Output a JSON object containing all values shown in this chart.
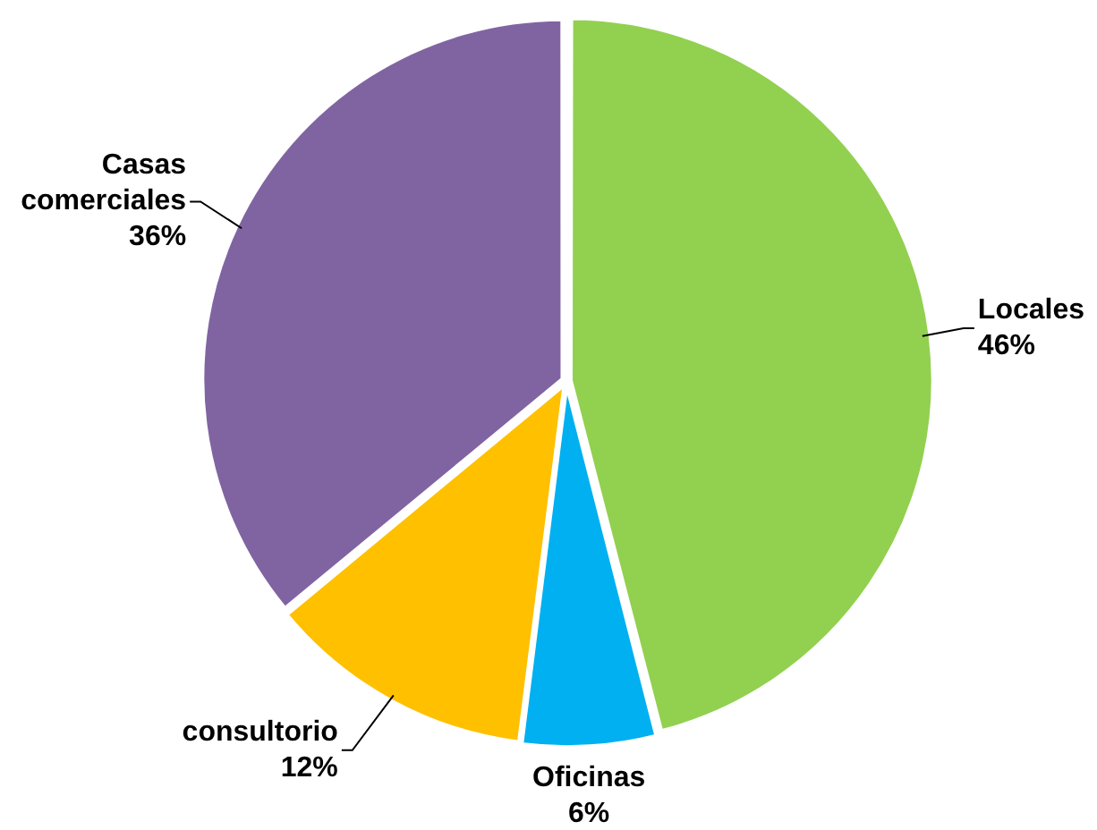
{
  "chart_data": {
    "type": "pie",
    "categories": [
      "Locales",
      "Oficinas",
      "consultorio",
      "Casas comerciales"
    ],
    "values": [
      46,
      6,
      12,
      36
    ],
    "colors": [
      "#92d050",
      "#00b0f0",
      "#ffc000",
      "#8064a2"
    ],
    "value_labels": [
      "46%",
      "6%",
      "12%",
      "36%"
    ],
    "legend": false
  }
}
